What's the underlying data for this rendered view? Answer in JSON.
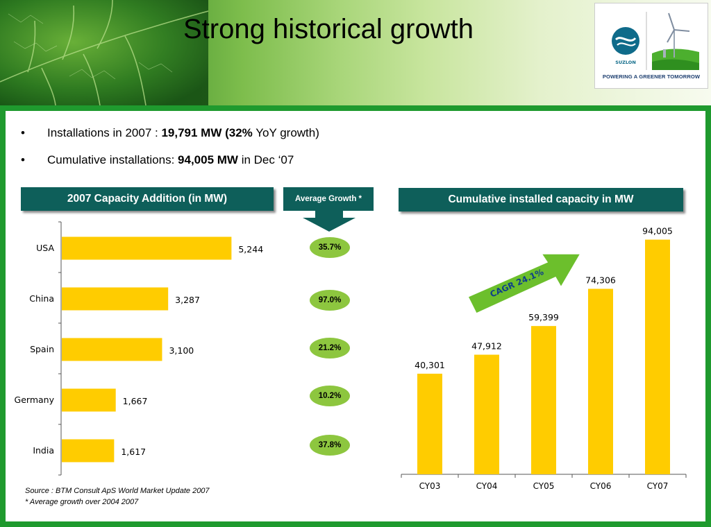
{
  "slide": {
    "title": "Strong historical growth",
    "logo": {
      "brand": "SUZLON",
      "caption": "POWERING A GREENER TOMORROW"
    },
    "bullets": [
      {
        "prefix": "Installations in 2007 : ",
        "bold": "19,791 MW (32%",
        "suffix": " YoY growth)"
      },
      {
        "prefix": "Cumulative installations: ",
        "bold": "94,005 MW",
        "suffix": " in Dec ‘07"
      }
    ],
    "headers": {
      "capacity_addition": "2007 Capacity Addition (in MW)",
      "average_growth": "Average Growth *",
      "cumulative": "Cumulative installed capacity in MW"
    },
    "growth_values": [
      "35.7%",
      "97.0%",
      "21.2%",
      "10.2%",
      "37.8%"
    ],
    "cagr_label": "CAGR 24.1%",
    "footnotes": {
      "source": "Source : BTM Consult ApS World Market Update 2007",
      "note": "* Average growth over 2004 2007"
    },
    "colors": {
      "bar": "#ffcc00",
      "header": "#0e5f5a",
      "frame": "#1f9a2e",
      "pill": "#8dc63f",
      "arrow": "#6cbf2c"
    }
  },
  "chart_data": [
    {
      "type": "bar",
      "orientation": "horizontal",
      "categories": [
        "USA",
        "China",
        "Spain",
        "Germany",
        "India"
      ],
      "values": [
        5244,
        3287,
        3100,
        1667,
        1617
      ],
      "value_labels": [
        "5,244",
        "3,287",
        "3,100",
        "1,667",
        "1,617"
      ],
      "xlim": [
        0,
        10000
      ]
    },
    {
      "type": "bar",
      "orientation": "vertical",
      "categories": [
        "CY03",
        "CY04",
        "CY05",
        "CY06",
        "CY07"
      ],
      "values": [
        40301,
        47912,
        59399,
        74306,
        94005
      ],
      "value_labels": [
        "40,301",
        "47,912",
        "59,399",
        "74,306",
        "94,005"
      ],
      "ylim": [
        0,
        100000
      ]
    }
  ]
}
